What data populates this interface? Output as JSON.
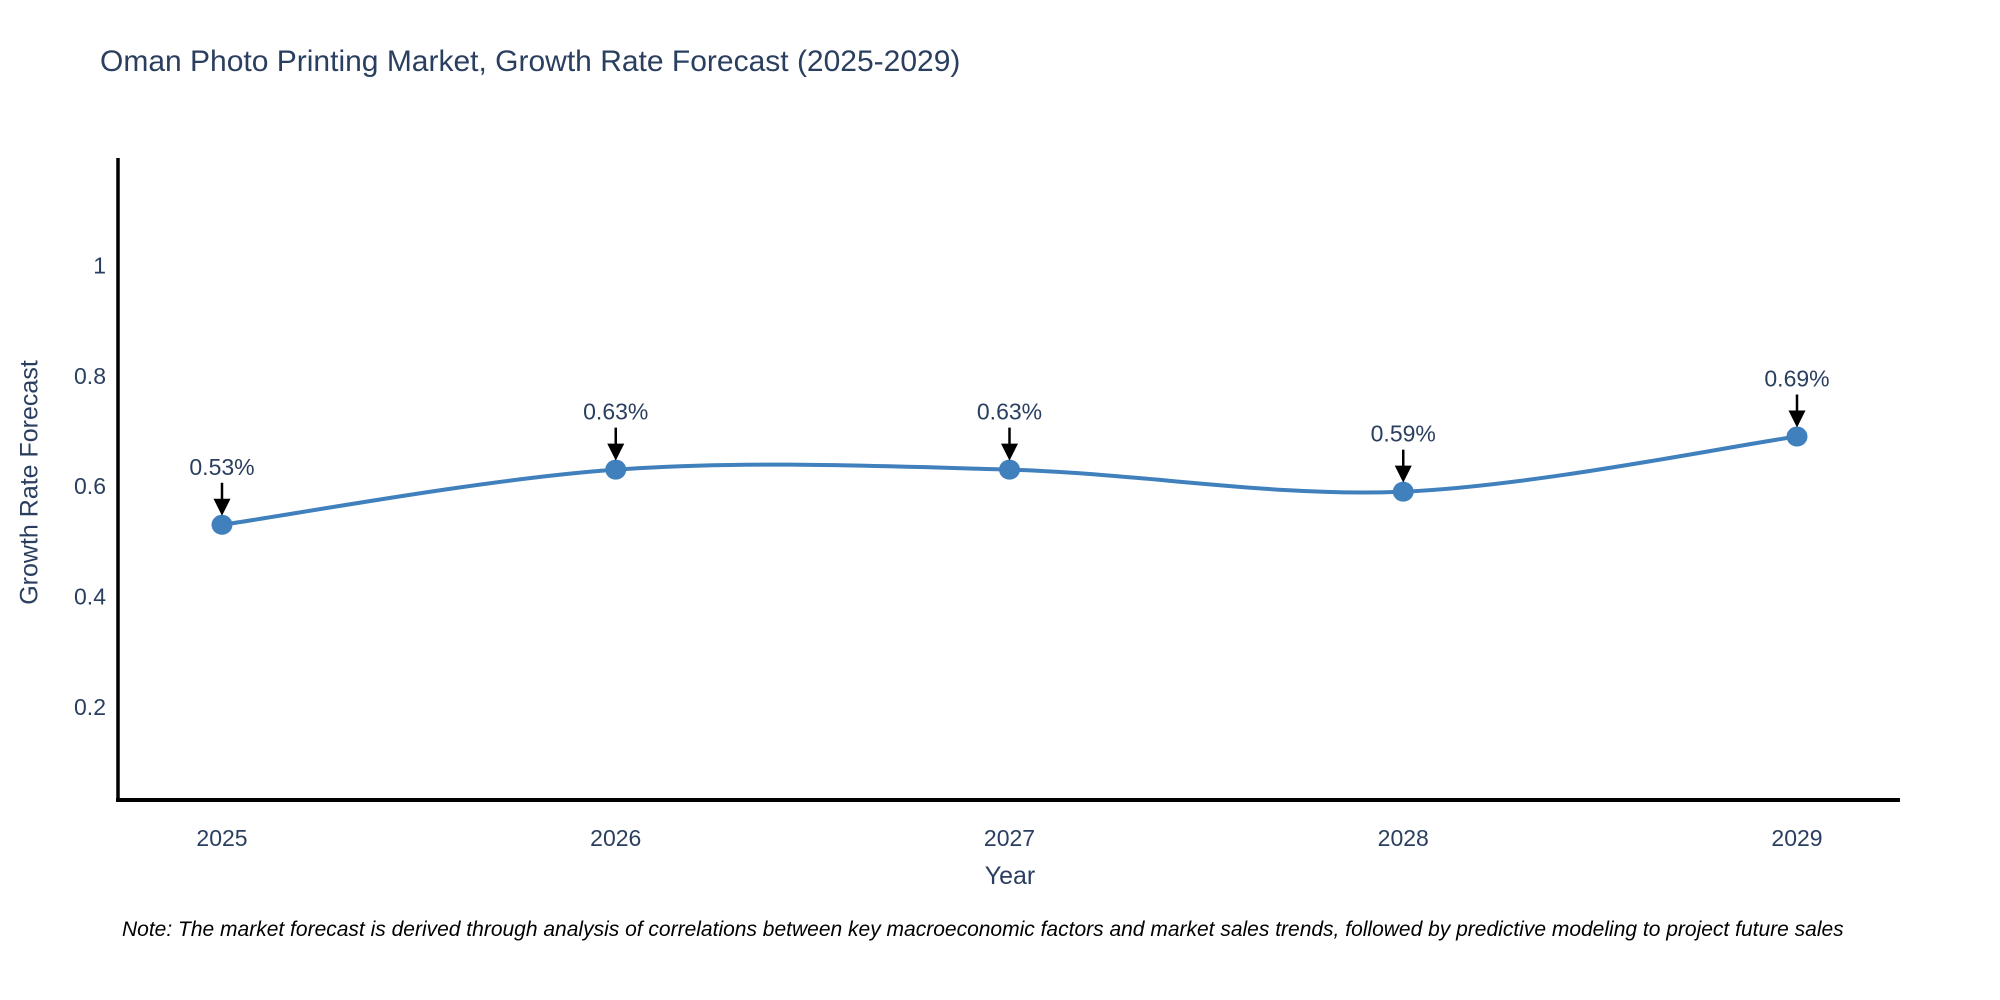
{
  "chart_data": {
    "type": "line",
    "title": "Oman Photo Printing Market, Growth Rate Forecast (2025-2029)",
    "xlabel": "Year",
    "ylabel": "Growth Rate Forecast",
    "categories": [
      "2025",
      "2026",
      "2027",
      "2028",
      "2029"
    ],
    "series": [
      {
        "name": "Growth Rate Forecast",
        "values": [
          0.53,
          0.63,
          0.63,
          0.59,
          0.69
        ],
        "point_labels": [
          "0.53%",
          "0.63%",
          "0.63%",
          "0.59%",
          "0.69%"
        ]
      }
    ],
    "line_shape": "spline",
    "markers": true,
    "annotations_arrows": true,
    "yticks": [
      0.2,
      0.4,
      0.6,
      0.8,
      1
    ],
    "ytick_labels": [
      "0.2",
      "0.4",
      "0.6",
      "0.8",
      "1"
    ],
    "ylim": [
      0.031,
      1.195
    ],
    "grid": false,
    "legend": false,
    "colors": {
      "line": "#4080bd",
      "marker": "#4080bd",
      "axis_line": "#000000",
      "text": "#2a3f5f",
      "annotation_arrow": "#000000",
      "note_text": "#000000"
    },
    "note": "Note: The market forecast is derived through analysis of correlations between key macroeconomic factors and market sales trends, followed by predictive modeling to project future sales"
  }
}
